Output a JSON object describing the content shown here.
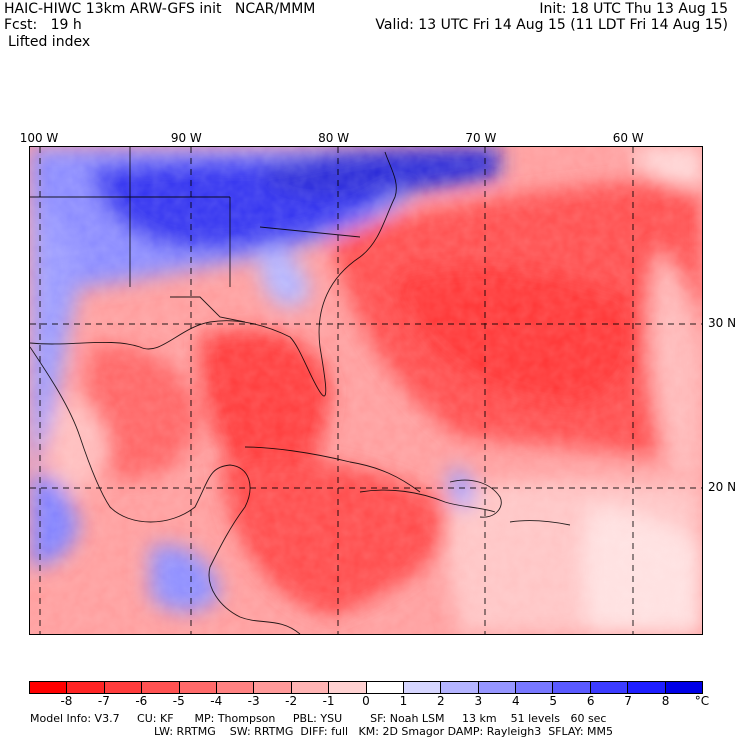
{
  "header": {
    "model_line": "HAIC-HIWC 13km ARW-GFS init   NCAR/MMM",
    "forecast_line": "Fcst:   19 h",
    "field": "Lifted index",
    "init_line": "Init: 18 UTC Thu 13 Aug 15",
    "valid_line": "Valid: 13 UTC Fri 14 Aug 15 (11 LDT Fri 14 Aug 15)"
  },
  "map": {
    "lon_labels": [
      {
        "text": "100 W",
        "lon": -100
      },
      {
        "text": "90 W",
        "lon": -90
      },
      {
        "text": "80 W",
        "lon": -80
      },
      {
        "text": "70 W",
        "lon": -70
      },
      {
        "text": "60 W",
        "lon": -60
      }
    ],
    "lat_labels": [
      {
        "text": "30 N",
        "lat": 30
      },
      {
        "text": "20 N",
        "lat": 20
      }
    ]
  },
  "legend": {
    "unit": "°C",
    "ticks": [
      "-8",
      "-7",
      "-6",
      "-5",
      "-4",
      "-3",
      "-2",
      "-1",
      "0",
      "1",
      "2",
      "3",
      "4",
      "5",
      "6",
      "7",
      "8"
    ],
    "colors": [
      "#ff0000",
      "#ff2424",
      "#ff3c3c",
      "#ff5252",
      "#ff6a6a",
      "#ff8282",
      "#ff9a9a",
      "#ffb4b4",
      "#ffd2d2",
      "#ffffff",
      "#d6d6ff",
      "#b4b4ff",
      "#9696ff",
      "#7878ff",
      "#5a5aff",
      "#3c3cff",
      "#1e1eff",
      "#0000e6"
    ]
  },
  "footer": {
    "line1": "Model Info: V3.7     CU: KF      MP: Thompson     PBL: YSU        SF: Noah LSM     13 km    51 levels   60 sec",
    "line2": "LW: RRTMG    SW: RRTMG  DIFF: full   KM: 2D Smagor DAMP: Rayleigh3  SFLAY: MM5"
  }
}
